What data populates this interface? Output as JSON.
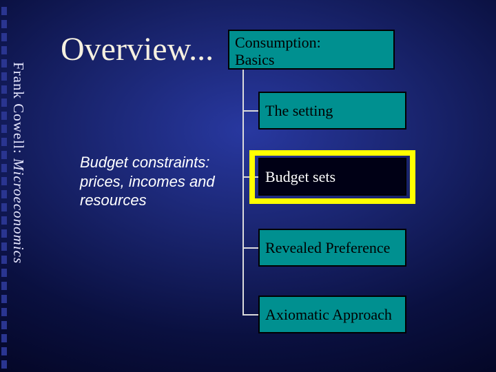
{
  "slide": {
    "background_gradient": [
      "#2838a0",
      "#1a2570",
      "#0a1040",
      "#000015"
    ],
    "title": "Overview...",
    "title_color": "#f5f0e0",
    "title_fontsize": 48,
    "sidebar": {
      "author": "Frank Cowell: ",
      "subject": "Microeconomics",
      "text_color": "#e8e8ff",
      "dash_color": "#2a3590"
    },
    "description": "Budget constraints: prices, incomes and resources",
    "description_color": "#ffffff",
    "tree": {
      "line_color": "#dcdcdc",
      "parent": {
        "label": "Consumption:\nBasics",
        "bg_color": "#009090",
        "border_color": "#000000",
        "text_color": "#000000"
      },
      "children": [
        {
          "label": "The setting",
          "bg_color": "#009090",
          "text_color": "#000000",
          "highlighted": false
        },
        {
          "label": "Budget sets",
          "bg_color": "#000015",
          "text_color": "#ffffff",
          "highlighted": true,
          "highlight_color": "#ffff00"
        },
        {
          "label": "Revealed Preference",
          "bg_color": "#009090",
          "text_color": "#000000",
          "highlighted": false
        },
        {
          "label": "Axiomatic Approach",
          "bg_color": "#009090",
          "text_color": "#000000",
          "highlighted": false
        }
      ]
    }
  }
}
